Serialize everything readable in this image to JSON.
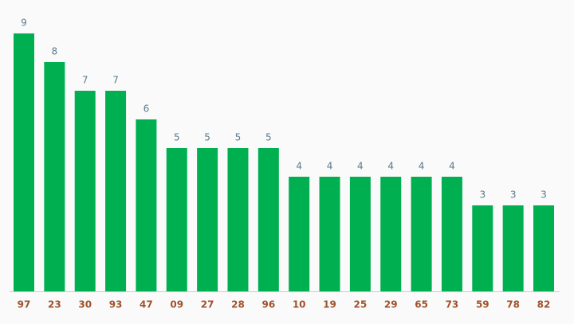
{
  "chart_data": {
    "type": "bar",
    "categories": [
      "97",
      "23",
      "30",
      "93",
      "47",
      "09",
      "27",
      "28",
      "96",
      "10",
      "19",
      "25",
      "29",
      "65",
      "73",
      "59",
      "78",
      "82"
    ],
    "values": [
      9,
      8,
      7,
      7,
      6,
      5,
      5,
      5,
      5,
      4,
      4,
      4,
      4,
      4,
      4,
      3,
      3,
      3
    ],
    "color": "#00b050"
  }
}
